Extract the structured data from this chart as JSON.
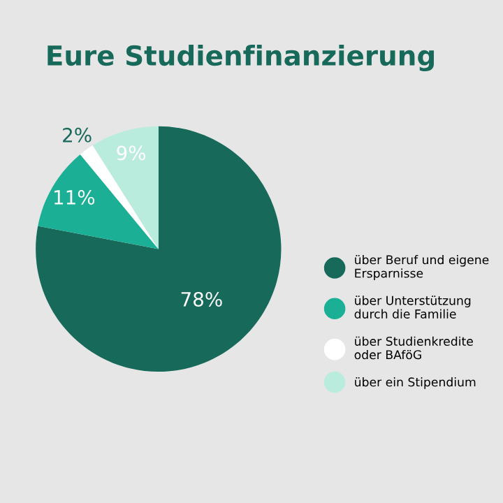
{
  "chart_data": {
    "type": "pie",
    "title": "Eure Studienfinanzierung",
    "categories": [
      "über Beruf und eigene\nErsparnisse",
      "über Unterstützung\ndurch die Familie",
      "über Studienkredite\noder BAföG",
      "über ein Stipendium"
    ],
    "values": [
      78,
      11,
      2,
      9
    ],
    "colors": [
      "#17695a",
      "#1bb096",
      "#ffffff",
      "#b9ecdc"
    ],
    "value_labels": [
      "78%",
      "11%",
      "2%",
      "9%"
    ],
    "legend": "right"
  }
}
